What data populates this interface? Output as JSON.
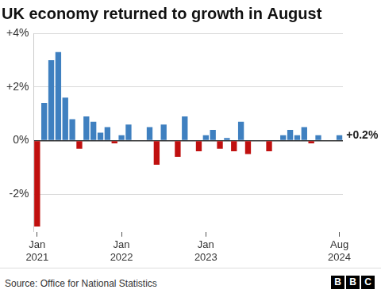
{
  "chart_data": {
    "type": "bar",
    "title": "UK economy returned to growth in August",
    "categories": [
      "Jan 2021",
      null,
      null,
      null,
      null,
      null,
      null,
      null,
      null,
      null,
      null,
      null,
      "Jan 2022",
      null,
      null,
      null,
      null,
      null,
      null,
      null,
      null,
      null,
      null,
      null,
      "Jan 2023",
      null,
      null,
      null,
      null,
      null,
      null,
      null,
      null,
      null,
      null,
      null,
      null,
      null,
      null,
      null,
      null,
      null,
      null,
      "Aug 2024"
    ],
    "values": [
      -3.2,
      1.4,
      3.0,
      3.3,
      1.6,
      0.8,
      -0.3,
      0.9,
      0.7,
      0.3,
      0.5,
      -0.1,
      0.2,
      0.6,
      0,
      0,
      0.5,
      -0.9,
      0.6,
      0,
      -0.6,
      0.9,
      0,
      -0.4,
      0.2,
      0.4,
      -0.3,
      0.1,
      -0.4,
      0.7,
      -0.5,
      0,
      0,
      -0.4,
      0,
      0.2,
      0.4,
      0.2,
      0.5,
      -0.1,
      0.2,
      0,
      0,
      0.2
    ],
    "colors": [
      "#c0100f",
      "#3f80c0",
      "#3f80c0",
      "#3f80c0",
      "#3f80c0",
      "#3f80c0",
      "#c0100f",
      "#3f80c0",
      "#3f80c0",
      "#3f80c0",
      "#3f80c0",
      "#c0100f",
      "#3f80c0",
      "#3f80c0",
      "#3f80c0",
      "#3f80c0",
      "#3f80c0",
      "#c0100f",
      "#3f80c0",
      "#3f80c0",
      "#c0100f",
      "#3f80c0",
      "#3f80c0",
      "#c0100f",
      "#3f80c0",
      "#3f80c0",
      "#c0100f",
      "#3f80c0",
      "#c0100f",
      "#3f80c0",
      "#c0100f",
      "#3f80c0",
      "#3f80c0",
      "#c0100f",
      "#3f80c0",
      "#3f80c0",
      "#3f80c0",
      "#3f80c0",
      "#3f80c0",
      "#c0100f",
      "#3f80c0",
      "#3f80c0",
      "#3f80c0",
      "#3f80c0"
    ],
    "ylim": [
      -3.4,
      4
    ],
    "yticks": [
      {
        "value": -2,
        "label": "-2%"
      },
      {
        "value": 0,
        "label": "0%"
      },
      {
        "value": 2,
        "label": "+2%"
      },
      {
        "value": 4,
        "label": "+4%"
      }
    ],
    "grid": true,
    "annotations": [
      {
        "text": "+0.2%"
      }
    ],
    "source": "Source: Office for National Statistics",
    "logo": "BBC"
  }
}
